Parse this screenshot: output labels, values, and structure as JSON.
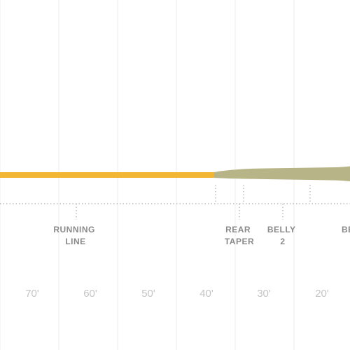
{
  "sections": [
    {
      "id": "running-line",
      "lines": [
        "RUNNING",
        "LINE"
      ]
    },
    {
      "id": "rear-taper",
      "lines": [
        "REAR",
        "TAPER"
      ]
    },
    {
      "id": "belly-2",
      "lines": [
        "BELLY",
        "2"
      ]
    },
    {
      "id": "belly-cut",
      "lines": [
        "BE"
      ]
    }
  ],
  "scale": {
    "unit_suffix": "'",
    "ticks": [
      "70'",
      "60'",
      "50'",
      "40'",
      "30'",
      "20'"
    ]
  },
  "colors": {
    "running_line": "#f2b632",
    "head": "#b7b487",
    "grid": "#eeeeee",
    "dotted": "#9a9a9a"
  }
}
